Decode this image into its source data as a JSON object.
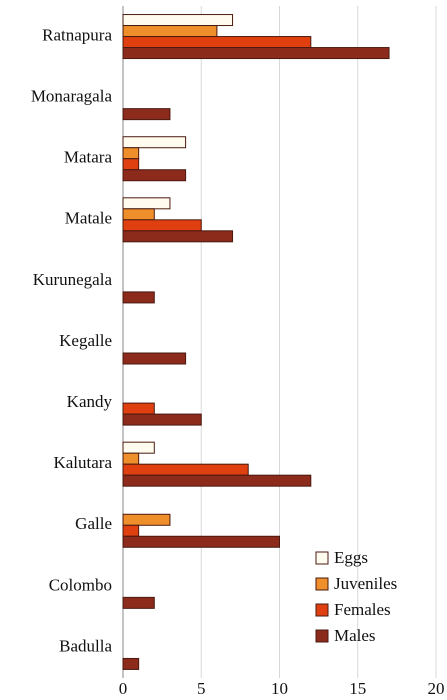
{
  "chart_data": {
    "type": "barh",
    "categories": [
      "Ratnapura",
      "Monaragala",
      "Matara",
      "Matale",
      "Kurunegala",
      "Kegalle",
      "Kandy",
      "Kalutara",
      "Galle",
      "Colombo",
      "Badulla"
    ],
    "series": [
      {
        "name": "Eggs",
        "color": "#fffcef",
        "values": [
          7,
          0,
          4,
          3,
          0,
          0,
          0,
          2,
          0,
          0,
          0
        ]
      },
      {
        "name": "Juveniles",
        "color": "#ef8f2c",
        "values": [
          6,
          0,
          1,
          2,
          0,
          0,
          0,
          1,
          3,
          0,
          0
        ]
      },
      {
        "name": "Females",
        "color": "#e0400f",
        "values": [
          12,
          0,
          1,
          5,
          0,
          0,
          2,
          8,
          1,
          0,
          0
        ]
      },
      {
        "name": "Males",
        "color": "#8c2a1c",
        "values": [
          17,
          3,
          4,
          7,
          2,
          4,
          5,
          12,
          10,
          2,
          1
        ]
      }
    ],
    "xlim": [
      0,
      20
    ],
    "xticks": [
      0,
      5,
      10,
      15,
      20
    ],
    "grid": true,
    "legend": "lower right"
  }
}
